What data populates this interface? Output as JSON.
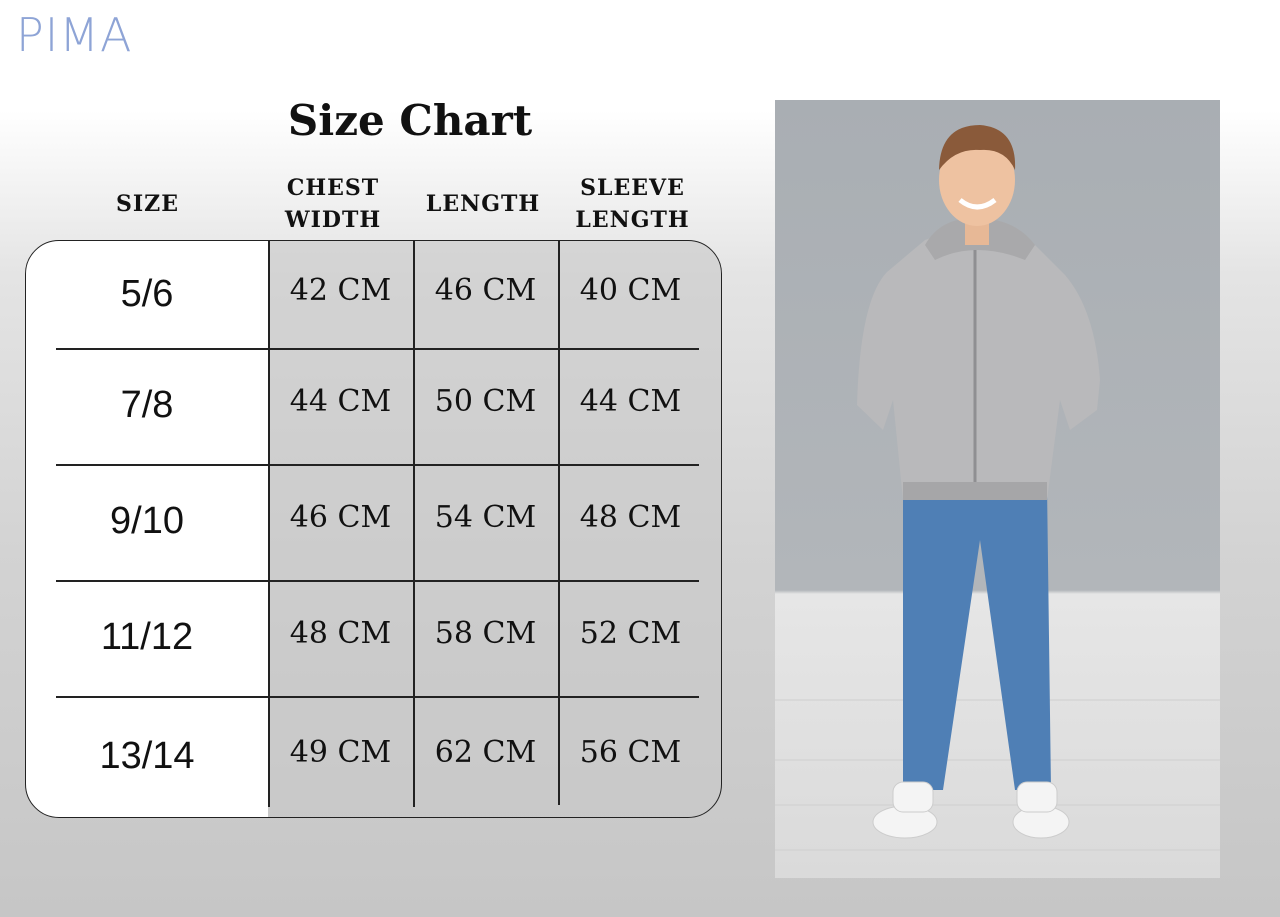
{
  "brand": {
    "logo_text": "PIMA",
    "logo_color": "#8ea4d6"
  },
  "title": "Size Chart",
  "headers": {
    "size": "SIZE",
    "chest_width": [
      "CHEST",
      "WIDTH"
    ],
    "length": "LENGTH",
    "sleeve_length": [
      "SLEEVE",
      "LENGTH"
    ]
  },
  "rows": [
    {
      "size": "5/6",
      "chest_width": "42 CM",
      "length": "46 CM",
      "sleeve_length": "40 CM"
    },
    {
      "size": "7/8",
      "chest_width": "44 CM",
      "length": "50 CM",
      "sleeve_length": "44 CM"
    },
    {
      "size": "9/10",
      "chest_width": "46 CM",
      "length": "54 CM",
      "sleeve_length": "48 CM"
    },
    {
      "size": "11/12",
      "chest_width": "48 CM",
      "length": "58 CM",
      "sleeve_length": "52 CM"
    },
    {
      "size": "13/14",
      "chest_width": "49 CM",
      "length": "62 CM",
      "sleeve_length": "56 CM"
    }
  ],
  "photo": {
    "subject": "model-boy-grey-zip-hoodie-jeans",
    "hoodie_color": "#b9b9bb",
    "jeans_color": "#4f7fb5"
  }
}
